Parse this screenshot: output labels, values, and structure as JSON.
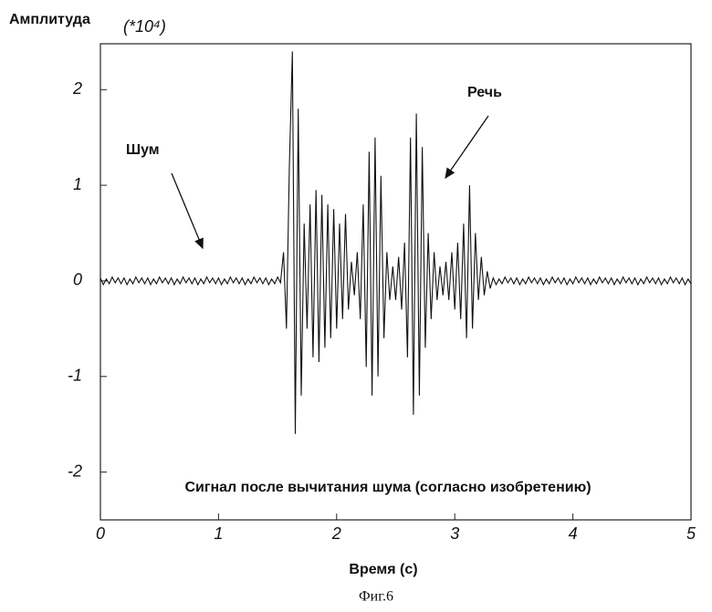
{
  "chart_data": {
    "type": "line",
    "title": "Амплитуда",
    "y_unit": "(*10⁴)",
    "x_label": "Время (с)",
    "caption": "Сигнал после вычитания шума (согласно изобретению)",
    "annotations": [
      "Шум",
      "Речь"
    ],
    "figure_label": "Фиг.6",
    "color": "#111111",
    "xlim": [
      0,
      5
    ],
    "xticks": [
      0,
      1,
      2,
      3,
      4,
      5
    ],
    "ylim": [
      -2.5,
      2.48
    ],
    "yticks": [
      -2,
      -1,
      0,
      1,
      2
    ],
    "x": [
      0,
      0.025,
      0.05,
      0.075,
      0.1,
      0.125,
      0.15,
      0.175,
      0.2,
      0.225,
      0.25,
      0.275,
      0.3,
      0.325,
      0.35,
      0.375,
      0.4,
      0.425,
      0.45,
      0.475,
      0.5,
      0.525,
      0.55,
      0.575,
      0.6,
      0.625,
      0.65,
      0.675,
      0.7,
      0.725,
      0.75,
      0.775,
      0.8,
      0.825,
      0.85,
      0.875,
      0.9,
      0.925,
      0.95,
      0.975,
      1,
      1.025,
      1.05,
      1.075,
      1.1,
      1.125,
      1.15,
      1.175,
      1.2,
      1.225,
      1.25,
      1.275,
      1.3,
      1.325,
      1.35,
      1.375,
      1.4,
      1.425,
      1.45,
      1.475,
      1.5,
      1.525,
      1.55,
      1.575,
      1.6,
      1.625,
      1.65,
      1.675,
      1.7,
      1.725,
      1.75,
      1.775,
      1.8,
      1.825,
      1.85,
      1.875,
      1.9,
      1.925,
      1.95,
      1.975,
      2,
      2.025,
      2.05,
      2.075,
      2.1,
      2.125,
      2.15,
      2.175,
      2.2,
      2.225,
      2.25,
      2.275,
      2.3,
      2.325,
      2.35,
      2.375,
      2.4,
      2.425,
      2.45,
      2.475,
      2.5,
      2.525,
      2.55,
      2.575,
      2.6,
      2.625,
      2.65,
      2.675,
      2.7,
      2.725,
      2.75,
      2.775,
      2.8,
      2.825,
      2.85,
      2.875,
      2.9,
      2.925,
      2.95,
      2.975,
      3,
      3.025,
      3.05,
      3.075,
      3.1,
      3.125,
      3.15,
      3.175,
      3.2,
      3.225,
      3.25,
      3.275,
      3.3,
      3.325,
      3.35,
      3.375,
      3.4,
      3.425,
      3.45,
      3.475,
      3.5,
      3.525,
      3.55,
      3.575,
      3.6,
      3.625,
      3.65,
      3.675,
      3.7,
      3.725,
      3.75,
      3.775,
      3.8,
      3.825,
      3.85,
      3.875,
      3.9,
      3.925,
      3.95,
      3.975,
      4,
      4.025,
      4.05,
      4.075,
      4.1,
      4.125,
      4.15,
      4.175,
      4.2,
      4.225,
      4.25,
      4.275,
      4.3,
      4.325,
      4.35,
      4.375,
      4.4,
      4.425,
      4.45,
      4.475,
      4.5,
      4.525,
      4.55,
      4.575,
      4.6,
      4.625,
      4.65,
      4.675,
      4.7,
      4.725,
      4.75,
      4.775,
      4.8,
      4.825,
      4.85,
      4.875,
      4.9,
      4.925,
      4.95,
      4.975,
      5
    ],
    "values": [
      0.03,
      -0.04,
      0.02,
      -0.03,
      0.04,
      -0.02,
      0.03,
      -0.03,
      0.03,
      -0.04,
      0.02,
      -0.03,
      0.04,
      -0.02,
      0.03,
      -0.03,
      0.03,
      -0.04,
      0.02,
      -0.03,
      0.04,
      -0.02,
      0.03,
      -0.03,
      0.03,
      -0.04,
      0.02,
      -0.03,
      0.04,
      -0.02,
      0.03,
      -0.03,
      0.03,
      -0.04,
      0.02,
      -0.03,
      0.04,
      -0.02,
      0.03,
      -0.03,
      0.03,
      -0.04,
      0.02,
      -0.03,
      0.04,
      -0.02,
      0.03,
      -0.03,
      0.03,
      -0.04,
      0.02,
      -0.03,
      0.04,
      -0.02,
      0.03,
      -0.03,
      0.03,
      -0.04,
      0.02,
      -0.03,
      0.04,
      -0.02,
      0.3,
      -0.5,
      1.2,
      2.4,
      -1.6,
      1.8,
      -1.2,
      0.6,
      -0.5,
      0.8,
      -0.8,
      0.95,
      -0.85,
      0.9,
      -0.7,
      0.8,
      -0.6,
      0.75,
      -0.5,
      0.6,
      -0.4,
      0.7,
      -0.3,
      0.2,
      -0.15,
      0.3,
      -0.4,
      0.8,
      -0.9,
      1.35,
      -1.2,
      1.5,
      -1.0,
      1.1,
      -0.6,
      0.3,
      -0.2,
      0.15,
      -0.2,
      0.25,
      -0.3,
      0.4,
      -0.8,
      1.5,
      -1.4,
      1.75,
      -1.2,
      1.4,
      -0.7,
      0.5,
      -0.4,
      0.3,
      -0.2,
      0.15,
      -0.15,
      0.2,
      -0.2,
      0.3,
      -0.3,
      0.4,
      -0.4,
      0.6,
      -0.6,
      1.0,
      -0.5,
      0.5,
      -0.2,
      0.25,
      -0.15,
      0.1,
      -0.08,
      0.03,
      -0.04,
      0.02,
      -0.03,
      0.04,
      -0.02,
      0.03,
      -0.03,
      0.03,
      -0.04,
      0.02,
      -0.03,
      0.04,
      -0.02,
      0.03,
      -0.03,
      0.03,
      -0.04,
      0.02,
      -0.03,
      0.04,
      -0.02,
      0.03,
      -0.03,
      0.03,
      -0.04,
      0.02,
      -0.03,
      0.04,
      -0.02,
      0.03,
      -0.03,
      0.03,
      -0.04,
      0.02,
      -0.03,
      0.04,
      -0.02,
      0.03,
      -0.03,
      0.03,
      -0.04,
      0.02,
      -0.03,
      0.04,
      -0.02,
      0.03,
      -0.03,
      0.03,
      -0.04,
      0.02,
      -0.03,
      0.04,
      -0.02,
      0.03,
      -0.03,
      0.03,
      -0.04,
      0.02,
      -0.03,
      0.04,
      -0.02,
      0.03,
      -0.03,
      0.03,
      -0.04,
      0.02,
      -0.03
    ]
  }
}
